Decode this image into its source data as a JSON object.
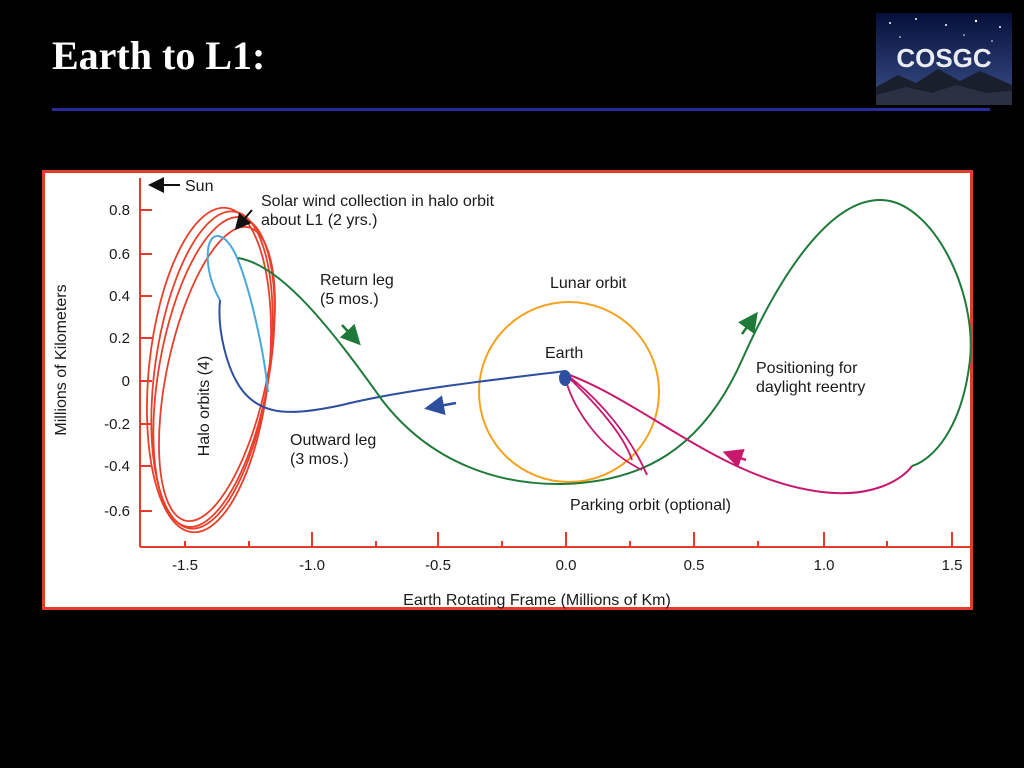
{
  "slide": {
    "title": "Earth to L1:",
    "logo_text": "COSGC",
    "logo_icon": "mountain-starfield-logo"
  },
  "figure": {
    "xlabel": "Earth Rotating Frame (Millions of Km)",
    "ylabel": "Millions of Kilometers",
    "xticks": [
      "-1.5",
      "-1.0",
      "-0.5",
      "0.0",
      "0.5",
      "1.0",
      "1.5"
    ],
    "yticks": [
      "0.8",
      "0.6",
      "0.4",
      "0.2",
      "0",
      "-0.2",
      "-0.4",
      "-0.6"
    ],
    "annotations": {
      "sun": "Sun",
      "solar_wind_1": "Solar wind collection in halo orbit",
      "solar_wind_2": "about L1 (2 yrs.)",
      "return_leg_1": "Return leg",
      "return_leg_2": "(5 mos.)",
      "lunar_orbit": "Lunar orbit",
      "earth": "Earth",
      "positioning_1": "Positioning for",
      "positioning_2": "daylight reentry",
      "halo_orbits": "Halo orbits (4)",
      "outward_leg_1": "Outward leg",
      "outward_leg_2": "(3 mos.)",
      "parking_orbit": "Parking orbit (optional)"
    },
    "colors": {
      "border": "#e53b2c",
      "halo": "#e8402a",
      "collection": "#4aa9d8",
      "outward": "#2e4ea0",
      "return": "#1f7a3a",
      "lunar": "#f4a21f",
      "positioning": "#c8186e"
    }
  }
}
